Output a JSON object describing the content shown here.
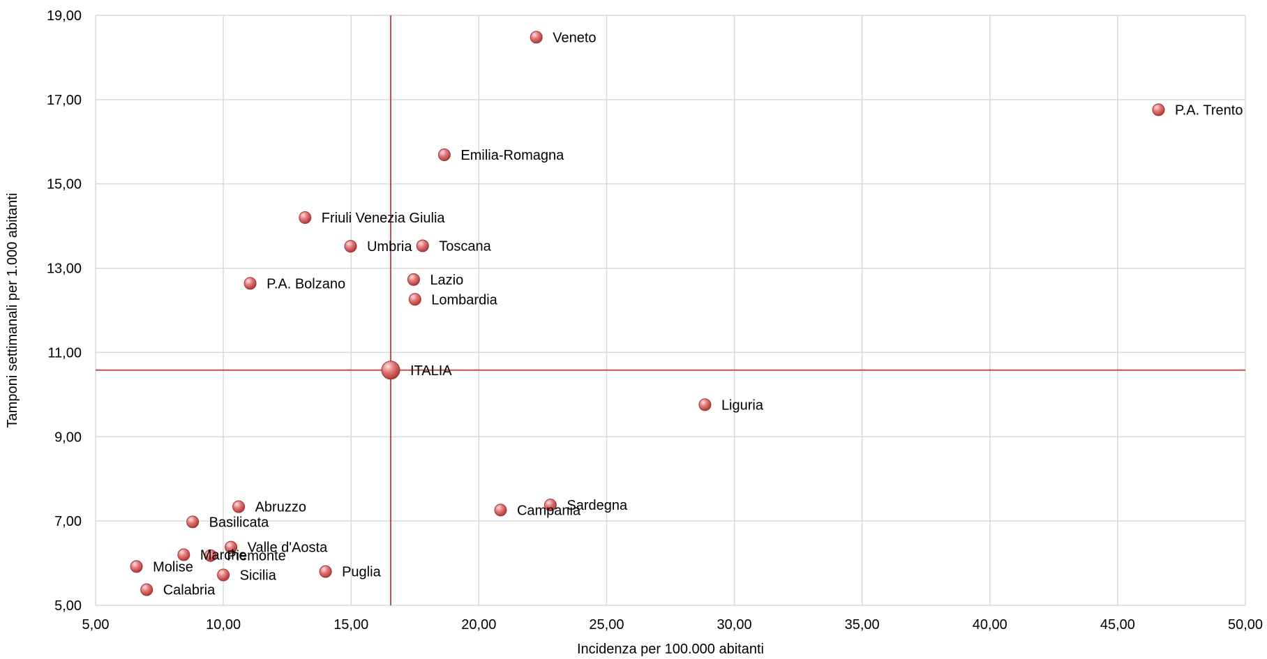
{
  "chart_data": {
    "type": "scatter",
    "xlabel": "Incidenza per 100.000 abitanti",
    "ylabel": "Tamponi settimanali per 1.000 abitanti",
    "xlim": [
      5,
      50
    ],
    "ylim": [
      5,
      19
    ],
    "x_ticks": [
      "5,00",
      "10,00",
      "15,00",
      "20,00",
      "25,00",
      "30,00",
      "35,00",
      "40,00",
      "45,00",
      "50,00"
    ],
    "y_ticks": [
      "5,00",
      "7,00",
      "9,00",
      "11,00",
      "13,00",
      "15,00",
      "17,00",
      "19,00"
    ],
    "grid": true,
    "reference_lines": {
      "x": 16.55,
      "y": 10.58,
      "color": "#c0504d"
    },
    "marker_color": "#d9696b",
    "points": [
      {
        "label": "Veneto",
        "x": 22.25,
        "y": 18.48
      },
      {
        "label": "P.A. Trento",
        "x": 46.6,
        "y": 16.76
      },
      {
        "label": "Emilia-Romagna",
        "x": 18.65,
        "y": 15.69
      },
      {
        "label": "Friuli Venezia Giulia",
        "x": 13.2,
        "y": 14.2
      },
      {
        "label": "Umbria",
        "x": 14.98,
        "y": 13.52
      },
      {
        "label": "Toscana",
        "x": 17.8,
        "y": 13.53
      },
      {
        "label": "P.A. Bolzano",
        "x": 11.05,
        "y": 12.64
      },
      {
        "label": "Lazio",
        "x": 17.45,
        "y": 12.73
      },
      {
        "label": "Lombardia",
        "x": 17.5,
        "y": 12.26
      },
      {
        "label": "ITALIA",
        "x": 16.55,
        "y": 10.58,
        "highlight": true
      },
      {
        "label": "Liguria",
        "x": 28.85,
        "y": 9.76
      },
      {
        "label": "Sardegna",
        "x": 22.8,
        "y": 7.38
      },
      {
        "label": "Campania",
        "x": 20.85,
        "y": 7.26
      },
      {
        "label": "Abruzzo",
        "x": 10.6,
        "y": 7.34
      },
      {
        "label": "Basilicata",
        "x": 8.8,
        "y": 6.98
      },
      {
        "label": "Valle d'Aosta",
        "x": 10.3,
        "y": 6.38
      },
      {
        "label": "Piemonte",
        "x": 9.5,
        "y": 6.18
      },
      {
        "label": "Marche",
        "x": 8.45,
        "y": 6.2
      },
      {
        "label": "Molise",
        "x": 6.6,
        "y": 5.92
      },
      {
        "label": "Sicilia",
        "x": 10.0,
        "y": 5.72
      },
      {
        "label": "Puglia",
        "x": 14.0,
        "y": 5.8
      },
      {
        "label": "Calabria",
        "x": 7.0,
        "y": 5.37
      }
    ]
  }
}
